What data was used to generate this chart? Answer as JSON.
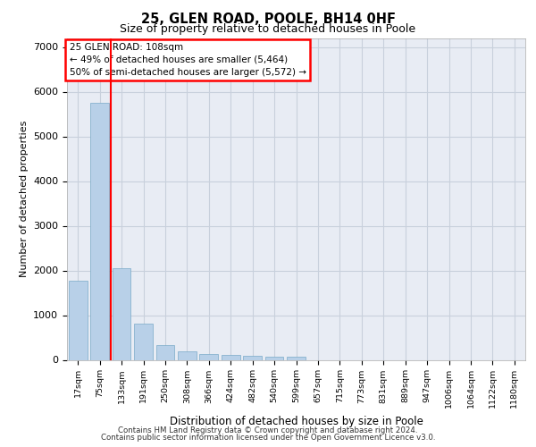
{
  "title1": "25, GLEN ROAD, POOLE, BH14 0HF",
  "title2": "Size of property relative to detached houses in Poole",
  "xlabel": "Distribution of detached houses by size in Poole",
  "ylabel": "Number of detached properties",
  "categories": [
    "17sqm",
    "75sqm",
    "133sqm",
    "191sqm",
    "250sqm",
    "308sqm",
    "366sqm",
    "424sqm",
    "482sqm",
    "540sqm",
    "599sqm",
    "657sqm",
    "715sqm",
    "773sqm",
    "831sqm",
    "889sqm",
    "947sqm",
    "1006sqm",
    "1064sqm",
    "1122sqm",
    "1180sqm"
  ],
  "values": [
    1780,
    5750,
    2060,
    820,
    340,
    200,
    130,
    110,
    100,
    80,
    75,
    0,
    0,
    0,
    0,
    0,
    0,
    0,
    0,
    0,
    0
  ],
  "bar_color": "#b8d0e8",
  "bar_edge_color": "#7aaac8",
  "vline_color": "red",
  "vline_x": 1.5,
  "annotation_title": "25 GLEN ROAD: 108sqm",
  "annotation_line1": "← 49% of detached houses are smaller (5,464)",
  "annotation_line2": "50% of semi-detached houses are larger (5,572) →",
  "ylim": [
    0,
    7200
  ],
  "yticks": [
    0,
    1000,
    2000,
    3000,
    4000,
    5000,
    6000,
    7000
  ],
  "grid_color": "#c8d0dc",
  "bg_color": "#e8ecf4",
  "footer1": "Contains HM Land Registry data © Crown copyright and database right 2024.",
  "footer2": "Contains public sector information licensed under the Open Government Licence v3.0."
}
